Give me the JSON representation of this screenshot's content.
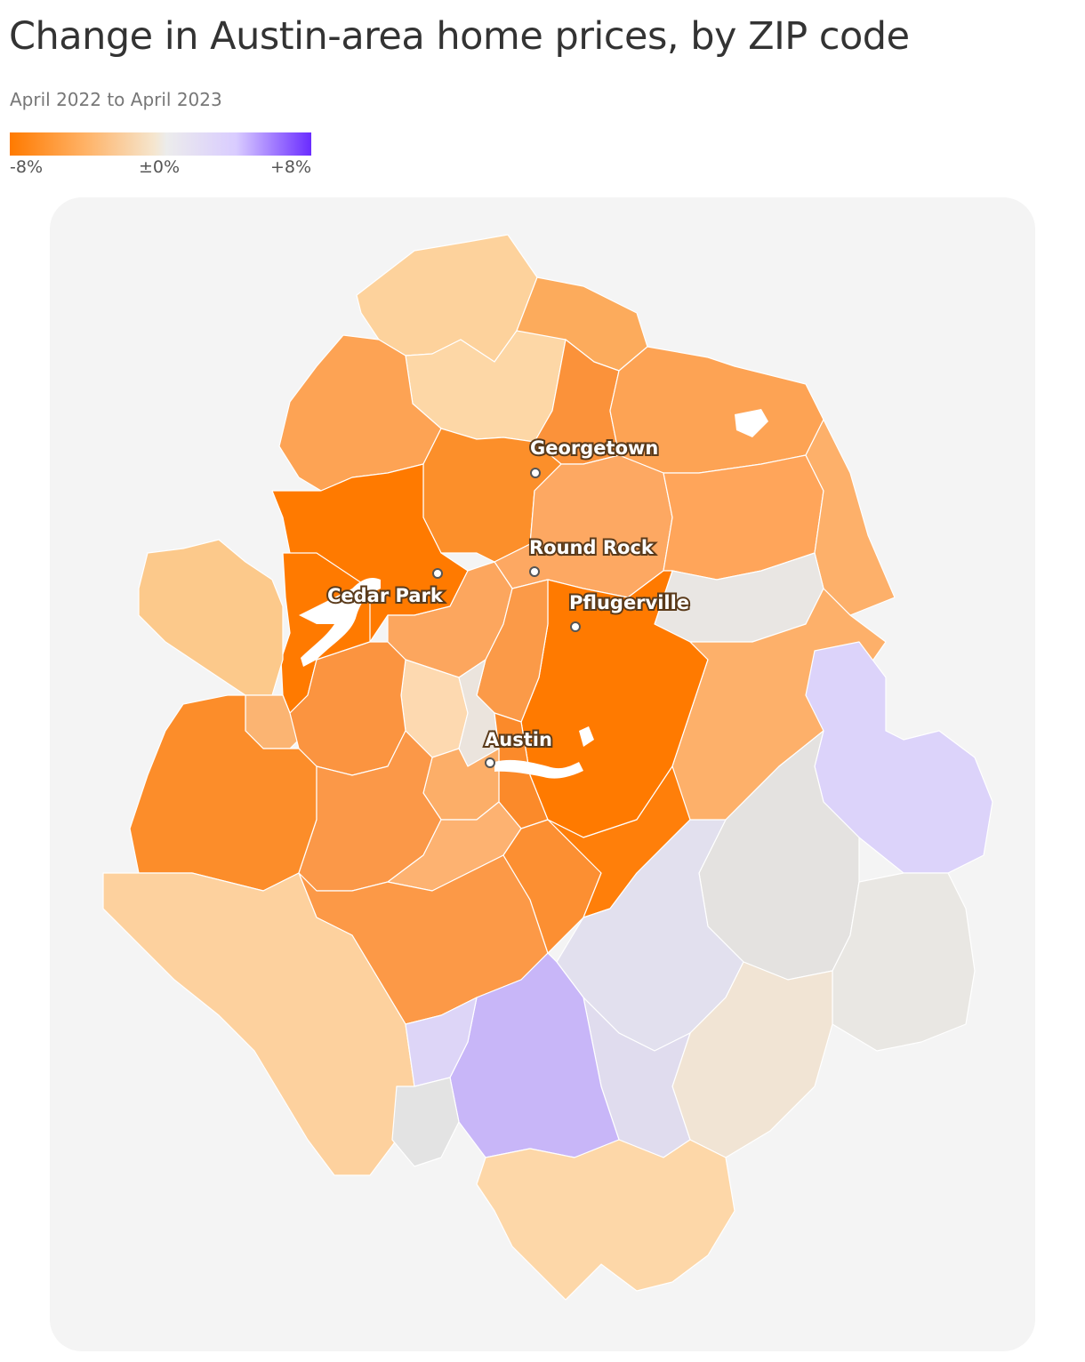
{
  "title": "Change in Austin-area home prices, by ZIP code",
  "subtitle": "April 2022 to April 2023",
  "legend": {
    "min_label": "-8%",
    "mid_label": "±0%",
    "max_label": "+8%",
    "colors": [
      "#ff7a00",
      "#f5e6cf",
      "#ececec",
      "#6a2cff"
    ]
  },
  "map": {
    "cities": [
      {
        "name": "Georgetown"
      },
      {
        "name": "Round Rock"
      },
      {
        "name": "Cedar Park"
      },
      {
        "name": "Pflugerville"
      },
      {
        "name": "Austin"
      }
    ]
  }
}
